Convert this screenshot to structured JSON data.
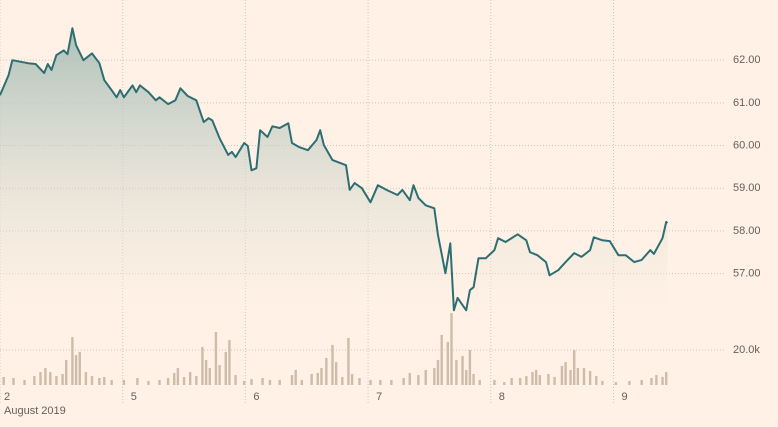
{
  "chart_data": {
    "type": "line",
    "xlim": [
      0,
      5.95
    ],
    "xticks": [
      {
        "value": 0,
        "label": "2"
      },
      {
        "value": 1,
        "label": "5"
      },
      {
        "value": 2,
        "label": "6"
      },
      {
        "value": 3,
        "label": "7"
      },
      {
        "value": 4,
        "label": "8"
      },
      {
        "value": 5,
        "label": "9"
      }
    ],
    "xlabel": "August 2019",
    "ylim": [
      55.5,
      63.41
    ],
    "yticks": [
      {
        "value": 57,
        "label": "57.00"
      },
      {
        "value": 58,
        "label": "58.00"
      },
      {
        "value": 59,
        "label": "59.00"
      },
      {
        "value": 60,
        "label": "60.00"
      },
      {
        "value": 61,
        "label": "61.00"
      },
      {
        "value": 62,
        "label": "62.00"
      }
    ],
    "y2lim": [
      0,
      45000
    ],
    "y2ticks": [
      {
        "value": 20000,
        "label": "20.0k"
      }
    ],
    "grid": true,
    "series": [
      {
        "type": "line",
        "color": "#2d6e73",
        "x": [
          0.0,
          0.07,
          0.1,
          0.23,
          0.29,
          0.36,
          0.39,
          0.42,
          0.46,
          0.52,
          0.55,
          0.59,
          0.62,
          0.68,
          0.75,
          0.81,
          0.85,
          0.91,
          0.95,
          0.98,
          1.01,
          1.08,
          1.11,
          1.14,
          1.21,
          1.27,
          1.3,
          1.37,
          1.43,
          1.47,
          1.53,
          1.6,
          1.66,
          1.7,
          1.73,
          1.79,
          1.86,
          1.89,
          1.92,
          1.99,
          2.02,
          2.05,
          2.09,
          2.12,
          2.18,
          2.22,
          2.28,
          2.35,
          2.38,
          2.44,
          2.51,
          2.58,
          2.61,
          2.64,
          2.71,
          2.82,
          2.85,
          2.89,
          2.95,
          3.02,
          3.08,
          3.15,
          3.24,
          3.28,
          3.34,
          3.37,
          3.41,
          3.47,
          3.54,
          3.57,
          3.63,
          3.67,
          3.7,
          3.73,
          3.8,
          3.83,
          3.86,
          3.9,
          3.96,
          4.03,
          4.06,
          4.12,
          4.22,
          4.29,
          4.32,
          4.38,
          4.45,
          4.48,
          4.55,
          4.61,
          4.68,
          4.74,
          4.81,
          4.84,
          4.91,
          4.97,
          5.04,
          5.1,
          5.17,
          5.23,
          5.3,
          5.33,
          5.4,
          5.43,
          5.44
        ],
        "values": [
          61.18,
          61.65,
          62.0,
          61.93,
          61.91,
          61.7,
          61.91,
          61.77,
          62.12,
          62.23,
          62.14,
          62.75,
          62.35,
          62.0,
          62.16,
          61.93,
          61.53,
          61.3,
          61.13,
          61.3,
          61.13,
          61.41,
          61.25,
          61.41,
          61.25,
          61.06,
          61.13,
          60.97,
          61.06,
          61.34,
          61.16,
          61.06,
          60.55,
          60.64,
          60.59,
          60.17,
          59.78,
          59.85,
          59.73,
          60.06,
          59.99,
          59.42,
          59.47,
          60.36,
          60.2,
          60.45,
          60.41,
          60.52,
          60.06,
          59.96,
          59.89,
          60.13,
          60.36,
          60.01,
          59.66,
          59.54,
          58.96,
          59.12,
          59.0,
          58.67,
          59.07,
          58.96,
          58.84,
          58.96,
          58.72,
          59.07,
          58.77,
          58.6,
          58.53,
          57.9,
          57.01,
          57.71,
          56.14,
          56.43,
          56.14,
          56.61,
          56.68,
          57.36,
          57.36,
          57.55,
          57.83,
          57.74,
          57.92,
          57.78,
          57.5,
          57.43,
          57.27,
          56.96,
          57.08,
          57.27,
          57.48,
          57.39,
          57.55,
          57.85,
          57.78,
          57.76,
          57.43,
          57.43,
          57.27,
          57.32,
          57.55,
          57.46,
          57.83,
          58.21,
          58.18
        ]
      },
      {
        "type": "bar",
        "axis": "y2",
        "color": "#cdbcaa",
        "x": [
          0.03,
          0.11,
          0.2,
          0.28,
          0.33,
          0.37,
          0.41,
          0.46,
          0.51,
          0.54,
          0.59,
          0.62,
          0.65,
          0.7,
          0.75,
          0.81,
          0.85,
          0.91,
          1.01,
          1.12,
          1.21,
          1.3,
          1.37,
          1.42,
          1.45,
          1.5,
          1.55,
          1.6,
          1.65,
          1.68,
          1.71,
          1.76,
          1.79,
          1.84,
          1.87,
          1.92,
          1.99,
          2.05,
          2.14,
          2.2,
          2.28,
          2.38,
          2.41,
          2.46,
          2.54,
          2.59,
          2.62,
          2.66,
          2.71,
          2.74,
          2.79,
          2.84,
          2.87,
          2.93,
          3.02,
          3.1,
          3.19,
          3.29,
          3.34,
          3.41,
          3.47,
          3.54,
          3.57,
          3.6,
          3.65,
          3.68,
          3.72,
          3.77,
          3.8,
          3.83,
          3.86,
          3.91,
          4.03,
          4.11,
          4.17,
          4.24,
          4.29,
          4.34,
          4.37,
          4.4,
          4.47,
          4.52,
          4.58,
          4.61,
          4.65,
          4.68,
          4.71,
          4.76,
          4.81,
          4.86,
          4.91,
          5.02,
          5.13,
          5.23,
          5.31,
          5.35,
          5.4,
          5.43
        ],
        "values": [
          4600,
          4000,
          2900,
          5100,
          7400,
          9700,
          7400,
          5100,
          6300,
          14300,
          27400,
          17100,
          18900,
          7400,
          5100,
          4000,
          4600,
          2900,
          2900,
          4000,
          2300,
          2900,
          4000,
          6900,
          9700,
          4600,
          7400,
          5100,
          21700,
          14300,
          9700,
          30300,
          11400,
          18900,
          25700,
          5700,
          2300,
          3400,
          4000,
          2900,
          2900,
          5700,
          8600,
          2900,
          6300,
          6900,
          9700,
          15400,
          22900,
          13100,
          4600,
          26900,
          6300,
          4000,
          2900,
          2900,
          2900,
          4000,
          6900,
          5700,
          8600,
          9700,
          14300,
          28600,
          24600,
          41100,
          14300,
          16600,
          8600,
          20000,
          6300,
          2900,
          2900,
          1700,
          4000,
          4000,
          5100,
          7400,
          8600,
          5700,
          6300,
          4600,
          10900,
          13100,
          8600,
          20000,
          9700,
          9700,
          8000,
          5100,
          2300,
          1700,
          2300,
          2900,
          4000,
          5700,
          4600,
          7400
        ]
      }
    ]
  }
}
